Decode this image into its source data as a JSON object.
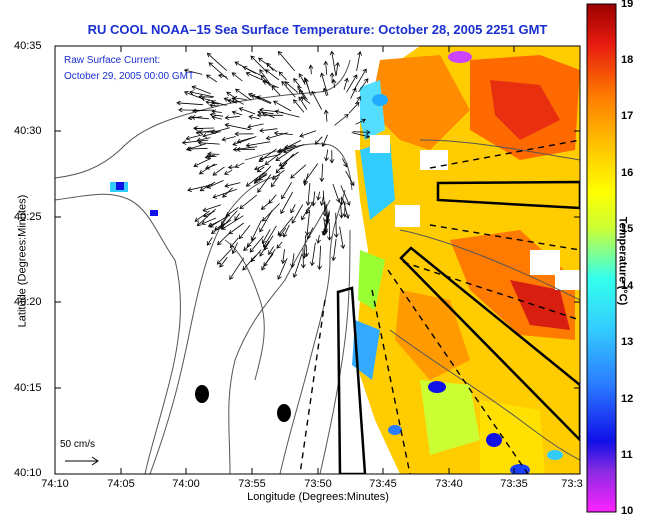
{
  "title": "RU COOL  NOAA–15  Sea Surface Temperature:  October 28, 2005 2251 GMT",
  "annotation": {
    "line1": "Raw Surface Current:",
    "line2": "October 29, 2005 00:00 GMT"
  },
  "scale_label": "50 cm/s",
  "axes": {
    "xlabel": "Longitude (Degrees:Minutes)",
    "ylabel": "Latitude (Degrees:Minutes)",
    "xticks": [
      "74:10",
      "74:05",
      "74:00",
      "73:55",
      "73:50",
      "73:45",
      "73:40",
      "73:35",
      "73:3"
    ],
    "yticks": [
      "40:35",
      "40:30",
      "40:25",
      "40:20",
      "40:15",
      "40:10"
    ]
  },
  "colorbar": {
    "title": "Temperature (°C)",
    "ticks": [
      "19",
      "18",
      "17",
      "16",
      "15",
      "14",
      "13",
      "12",
      "11",
      "10"
    ],
    "min": 10,
    "max": 19
  },
  "colors": {
    "title_blue": "#1a2fd0",
    "annotation_blue": "#1a2fd0"
  }
}
